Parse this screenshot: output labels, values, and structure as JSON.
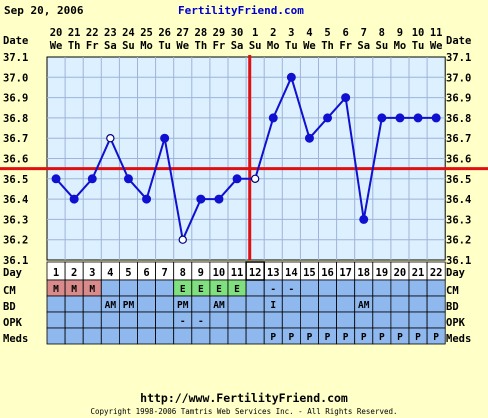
{
  "header": {
    "date_label": "Sep 20, 2006",
    "brand": "FertilityFriend.com"
  },
  "row_labels": {
    "date": "Date",
    "day": "Day",
    "cm": "CM",
    "bd": "BD",
    "opk": "OPK",
    "meds": "Meds"
  },
  "footer": {
    "url": "http://www.FertilityFriend.com",
    "copyright": "Copyright 1998-2006 Tamtris Web Services Inc. - All Rights Reserved."
  },
  "colors": {
    "background": "#ffffc8",
    "plot_bg": "#dcf0ff",
    "grid": "#9fb4d8",
    "line": "#1010d0",
    "coverline": "#e01010",
    "cm_menses": "#d98b8b",
    "cm_egg": "#80e080",
    "row_blue": "#8fb8ee"
  },
  "chart_data": {
    "type": "line",
    "title": "",
    "xlabel": "Day",
    "ylabel": "",
    "ylim": [
      36.1,
      37.1
    ],
    "y_ticks": [
      "37.1",
      "37.0",
      "36.9",
      "36.8",
      "36.7",
      "36.6",
      "36.5",
      "36.4",
      "36.3",
      "36.2",
      "36.1"
    ],
    "dates": [
      "20",
      "21",
      "22",
      "23",
      "24",
      "25",
      "26",
      "27",
      "28",
      "29",
      "30",
      "1",
      "2",
      "3",
      "4",
      "5",
      "6",
      "7",
      "8",
      "9",
      "10",
      "11"
    ],
    "weekdays": [
      "We",
      "Th",
      "Fr",
      "Sa",
      "Su",
      "Mo",
      "Tu",
      "We",
      "Th",
      "Fr",
      "Sa",
      "Su",
      "Mo",
      "Tu",
      "We",
      "Th",
      "Fr",
      "Sa",
      "Su",
      "Mo",
      "Tu",
      "We"
    ],
    "days": [
      "1",
      "2",
      "3",
      "4",
      "5",
      "6",
      "7",
      "8",
      "9",
      "10",
      "11",
      "12",
      "13",
      "14",
      "15",
      "16",
      "17",
      "18",
      "19",
      "20",
      "21",
      "22"
    ],
    "series": [
      {
        "values": [
          36.5,
          36.4,
          36.5,
          36.7,
          36.5,
          36.4,
          36.7,
          36.2,
          36.4,
          36.4,
          36.5,
          36.5,
          36.8,
          37.0,
          36.7,
          36.8,
          36.9,
          36.3,
          36.8,
          36.8,
          36.8,
          36.8
        ],
        "open_points": [
          3,
          7,
          11
        ]
      }
    ],
    "coverline": 36.55,
    "ovulation_day": "12",
    "cm": [
      "M",
      "M",
      "M",
      "",
      "",
      "",
      "",
      "E",
      "E",
      "E",
      "E",
      "",
      "-",
      "-",
      "",
      "",
      "",
      "",
      "",
      "",
      "",
      ""
    ],
    "bd": [
      "",
      "",
      "",
      "AM",
      "PM",
      "",
      "",
      "PM",
      "",
      "AM",
      "",
      "",
      "I",
      "",
      "",
      "",
      "",
      "AM",
      "",
      "",
      "",
      ""
    ],
    "opk": [
      "",
      "",
      "",
      "",
      "",
      "",
      "",
      "-",
      "-",
      "",
      "",
      "",
      "",
      "",
      "",
      "",
      "",
      "",
      "",
      "",
      "",
      ""
    ],
    "meds": [
      "",
      "",
      "",
      "",
      "",
      "",
      "",
      "",
      "",
      "",
      "",
      "",
      "P",
      "P",
      "P",
      "P",
      "P",
      "P",
      "P",
      "P",
      "P",
      "P"
    ],
    "grid": true
  }
}
